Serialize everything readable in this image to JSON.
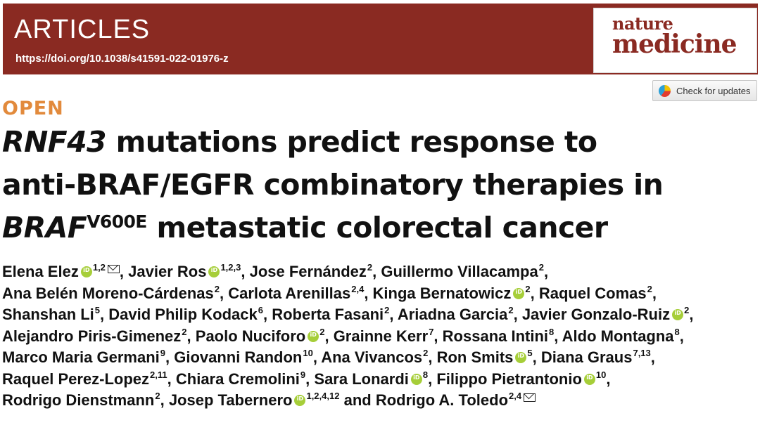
{
  "header": {
    "kicker": "ARTICLES",
    "doi": "https://doi.org/10.1038/s41591-022-01976-z",
    "journal_small": "nature",
    "journal_big": "medicine",
    "colors": {
      "banner": "#8a2a22",
      "open": "#e28a3c",
      "orcid": "#a6ce39"
    }
  },
  "check_updates": {
    "label": "Check for updates"
  },
  "open_label": "OPEN",
  "title": {
    "gene": "RNF43",
    "line1_rest": " mutations predict response to",
    "line2": "anti-BRAF/EGFR combinatory therapies in",
    "braf": "BRAF",
    "braf_sup": "V600E",
    "line3_rest": " metastatic colorectal cancer"
  },
  "authors": [
    {
      "name": "Elena Elez",
      "orcid": true,
      "aff": "1,2",
      "corresponding": true,
      "sep": ", "
    },
    {
      "name": "Javier Ros",
      "orcid": true,
      "aff": "1,2,3",
      "sep": ", "
    },
    {
      "name": "Jose Fernández",
      "aff": "2",
      "sep": ", "
    },
    {
      "name": "Guillermo Villacampa",
      "aff": "2",
      "sep": ",",
      "break": true
    },
    {
      "name": "Ana Belén Moreno-Cárdenas",
      "aff": "2",
      "sep": ", "
    },
    {
      "name": "Carlota Arenillas",
      "aff": "2,4",
      "sep": ", "
    },
    {
      "name": "Kinga Bernatowicz",
      "orcid": true,
      "aff": "2",
      "sep": ", "
    },
    {
      "name": "Raquel Comas",
      "aff": "2",
      "sep": ",",
      "break": true
    },
    {
      "name": "Shanshan Li",
      "aff": "5",
      "sep": ", "
    },
    {
      "name": "David Philip Kodack",
      "aff": "6",
      "sep": ", "
    },
    {
      "name": "Roberta Fasani",
      "aff": "2",
      "sep": ", "
    },
    {
      "name": "Ariadna Garcia",
      "aff": "2",
      "sep": ", "
    },
    {
      "name": "Javier Gonzalo-Ruiz",
      "orcid": true,
      "aff": "2",
      "sep": ",",
      "break": true
    },
    {
      "name": "Alejandro Piris-Gimenez",
      "aff": "2",
      "sep": ", "
    },
    {
      "name": "Paolo Nuciforo",
      "orcid": true,
      "aff": "2",
      "sep": ", "
    },
    {
      "name": "Grainne Kerr",
      "aff": "7",
      "sep": ", "
    },
    {
      "name": "Rossana Intini",
      "aff": "8",
      "sep": ", "
    },
    {
      "name": "Aldo Montagna",
      "aff": "8",
      "sep": ",",
      "break": true
    },
    {
      "name": "Marco Maria Germani",
      "aff": "9",
      "sep": ", "
    },
    {
      "name": "Giovanni Randon",
      "aff": "10",
      "sep": ", "
    },
    {
      "name": "Ana Vivancos",
      "aff": "2",
      "sep": ", "
    },
    {
      "name": "Ron Smits",
      "orcid": true,
      "aff": "5",
      "sep": ", "
    },
    {
      "name": "Diana Graus",
      "aff": "7,13",
      "sep": ",",
      "break": true
    },
    {
      "name": "Raquel Perez-Lopez",
      "aff": "2,11",
      "sep": ", "
    },
    {
      "name": "Chiara Cremolini",
      "aff": "9",
      "sep": ", "
    },
    {
      "name": "Sara Lonardi",
      "orcid": true,
      "aff": "8",
      "sep": ", "
    },
    {
      "name": "Filippo Pietrantonio",
      "orcid": true,
      "aff": "10",
      "sep": ",",
      "break": true
    },
    {
      "name": "Rodrigo Dienstmann",
      "aff": "2",
      "sep": ", "
    },
    {
      "name": "Josep Tabernero",
      "orcid": true,
      "aff": "1,2,4,12",
      "sep": " and "
    },
    {
      "name": "Rodrigo A. Toledo",
      "aff": "2,4",
      "corresponding": true,
      "sep": ""
    }
  ]
}
